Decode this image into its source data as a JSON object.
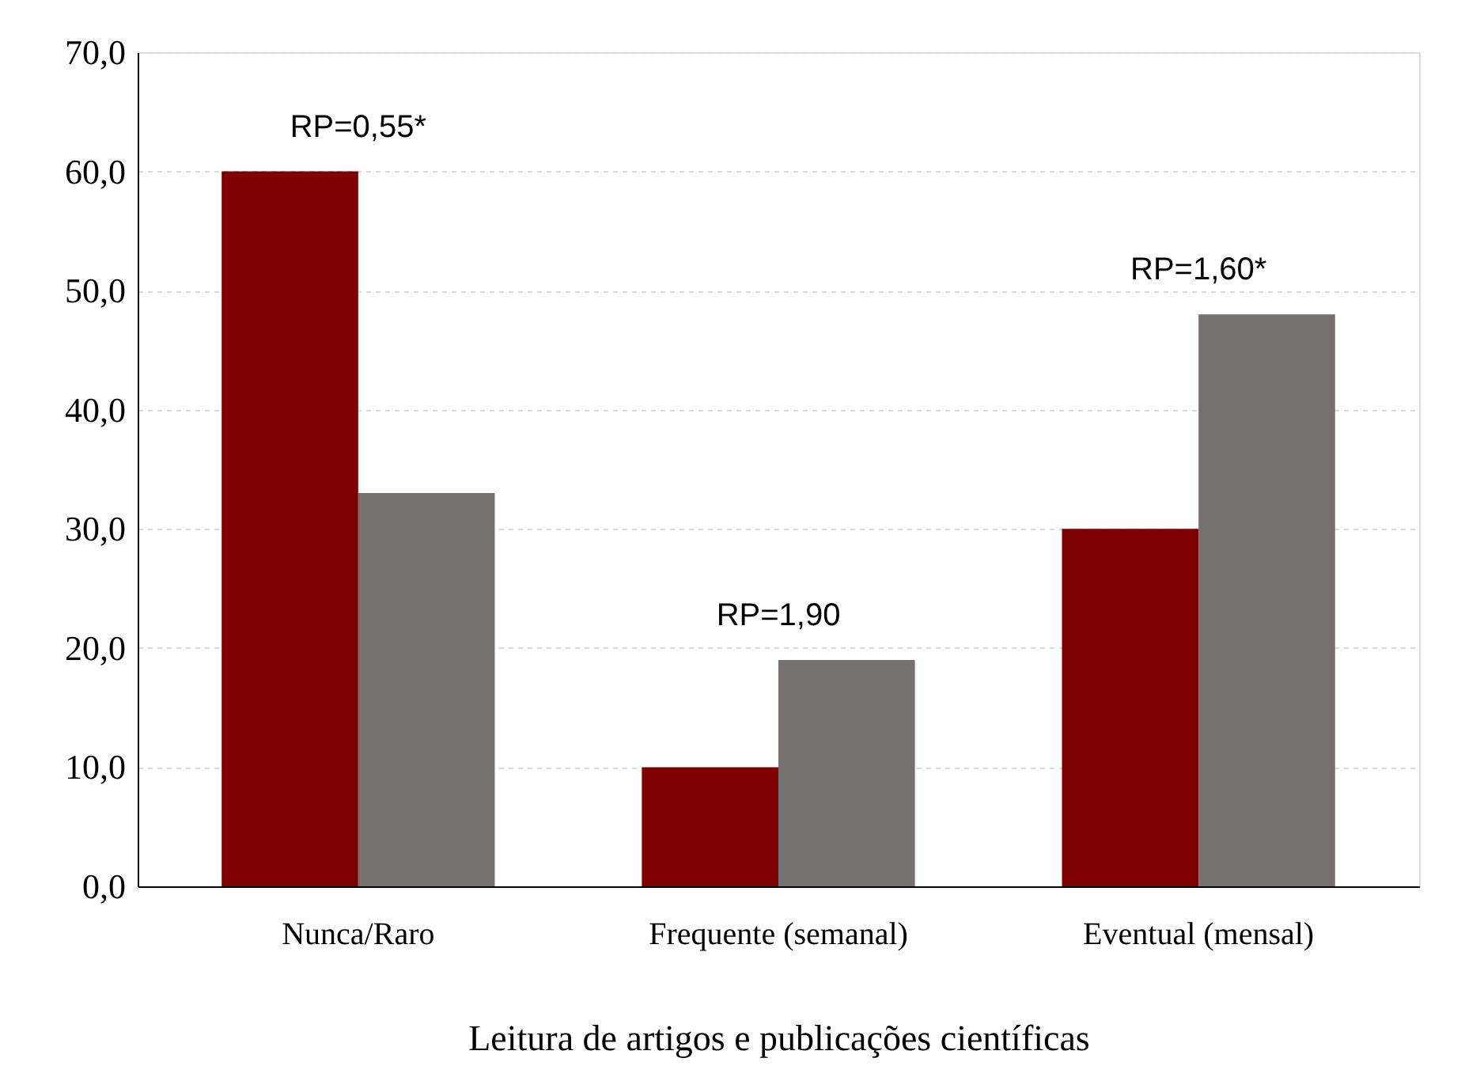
{
  "chart_data": {
    "type": "bar",
    "xlabel": "Leitura de artigos e publicações científicas",
    "categories": [
      "Nunca/Raro",
      "Frequente (semanal)",
      "Eventual (mensal)"
    ],
    "series": [
      {
        "color": "#7f0000",
        "values": [
          60,
          10,
          30
        ]
      },
      {
        "color": "#767171",
        "values": [
          33,
          19,
          48
        ]
      }
    ],
    "ylim": [
      0,
      70
    ],
    "yticks": [
      {
        "value": 0,
        "label": "0,0"
      },
      {
        "value": 10,
        "label": "10,0"
      },
      {
        "value": 20,
        "label": "20,0"
      },
      {
        "value": 30,
        "label": "30,0"
      },
      {
        "value": 40,
        "label": "40,0"
      },
      {
        "value": 50,
        "label": "50,0"
      },
      {
        "value": 60,
        "label": "60,0"
      },
      {
        "value": 70,
        "label": "70,0"
      }
    ],
    "grid": "y",
    "legend": false,
    "annotations": [
      "RP=0,55*",
      "RP=1,90",
      "RP=1,60*"
    ]
  }
}
